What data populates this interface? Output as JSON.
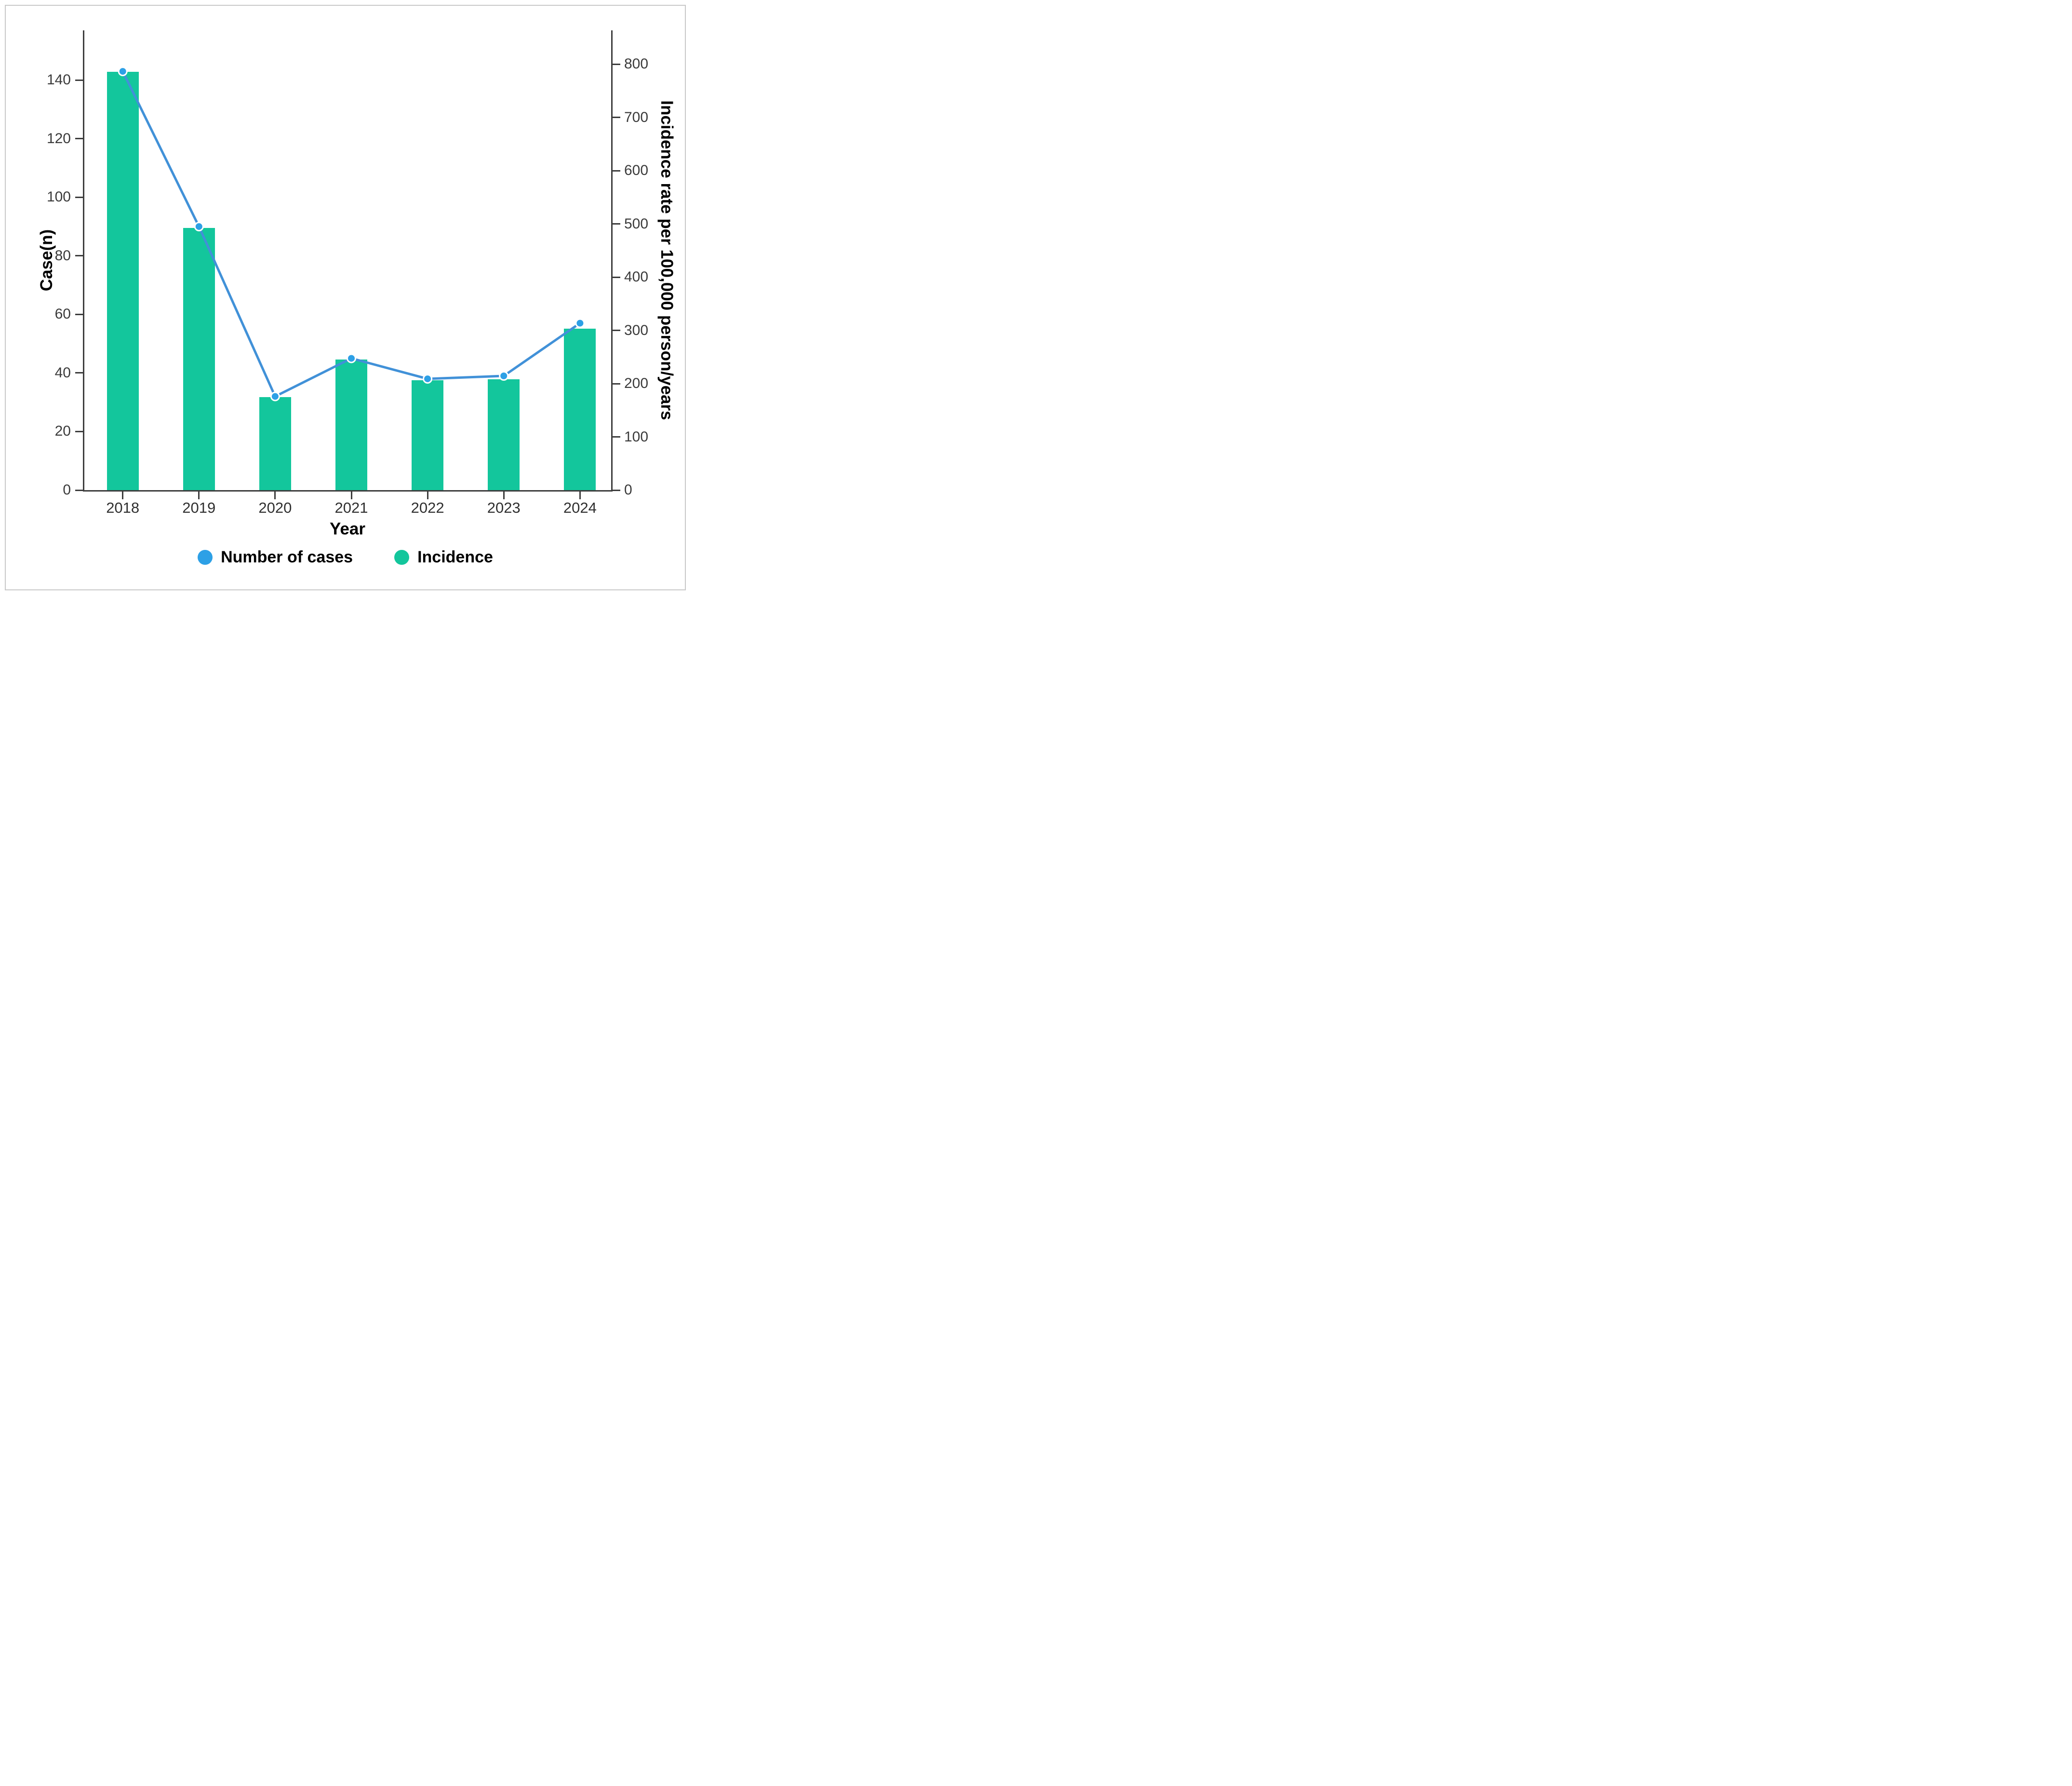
{
  "figure": {
    "background": "#ffffff",
    "frame_border_color": "#c8c8c8",
    "axis_color": "#3d3d3d",
    "tick_label_color": "#3a3a3a"
  },
  "chart_data": {
    "type": "combo",
    "categories": [
      "2018",
      "2019",
      "2020",
      "2021",
      "2022",
      "2023",
      "2024"
    ],
    "series": [
      {
        "name": "Number of cases",
        "type": "line",
        "axis": "left",
        "values": [
          143,
          90,
          32,
          45,
          38,
          39,
          57
        ],
        "line_color": "#4191d8",
        "marker_color": "#2da0e6",
        "marker_ring_color": "#ffffff"
      },
      {
        "name": "Incidence",
        "type": "bar",
        "axis": "right",
        "values": [
          786,
          492,
          175,
          245,
          206,
          208,
          303
        ],
        "color": "#13c69c"
      }
    ],
    "left_axis": {
      "label": "Case(n)",
      "ticks": [
        0,
        20,
        40,
        60,
        80,
        100,
        120,
        140
      ],
      "max": 157
    },
    "right_axis": {
      "label": "Incidence rate per 100,000 person/years",
      "ticks": [
        0,
        100,
        200,
        300,
        400,
        500,
        600,
        700,
        800
      ],
      "max": 863.5
    },
    "x_axis": {
      "label": "Year"
    },
    "legend_position": "bottom",
    "grid": false
  }
}
